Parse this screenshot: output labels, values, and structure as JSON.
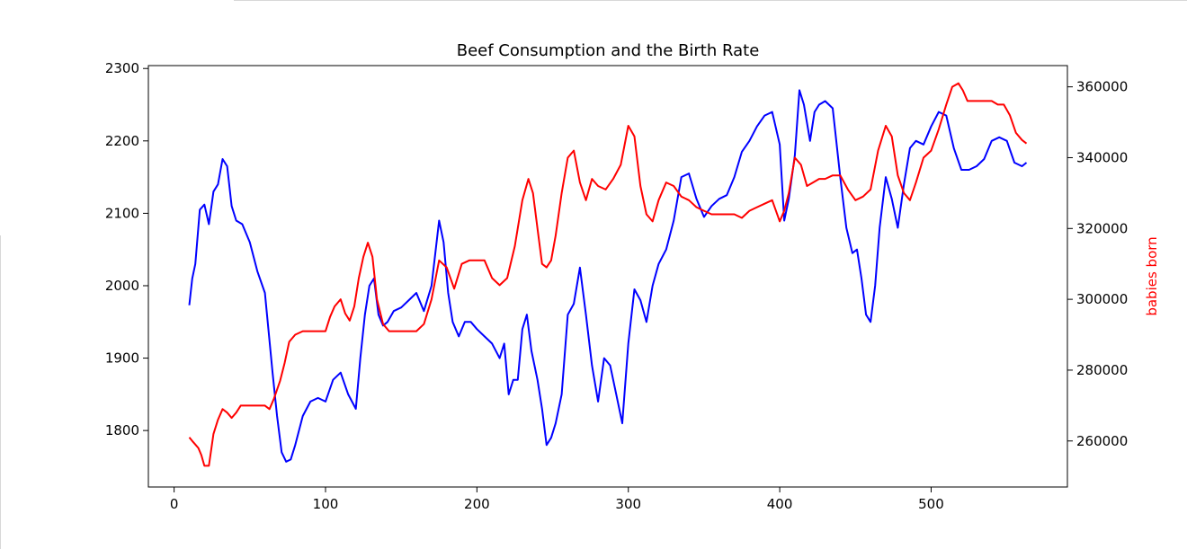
{
  "chart_data": {
    "type": "line",
    "title": "Beef Consumption and the Birth Rate",
    "xlabel": "",
    "xlim": [
      -17,
      590
    ],
    "x_ticks": [
      0,
      100,
      200,
      300,
      400,
      500
    ],
    "y_left": {
      "label": "",
      "lim": [
        1722,
        2304
      ],
      "ticks": [
        1800,
        1900,
        2000,
        2100,
        2200,
        2300
      ],
      "color": "#000000"
    },
    "y_right": {
      "label": "babies born",
      "label_color": "#ff0000",
      "lim": [
        247000,
        366000
      ],
      "ticks": [
        260000,
        280000,
        300000,
        320000,
        340000,
        360000
      ]
    },
    "grid": false,
    "series": [
      {
        "axis": "left",
        "color": "#0000ff",
        "x": [
          10,
          12,
          14,
          17,
          20,
          23,
          26,
          29,
          32,
          35,
          38,
          41,
          45,
          50,
          55,
          60,
          65,
          68,
          71,
          74,
          77,
          80,
          85,
          90,
          95,
          100,
          105,
          110,
          115,
          120,
          123,
          126,
          129,
          132,
          135,
          138,
          141,
          145,
          150,
          155,
          160,
          165,
          170,
          175,
          178,
          181,
          184,
          188,
          192,
          196,
          200,
          205,
          210,
          215,
          218,
          221,
          224,
          227,
          230,
          233,
          236,
          240,
          243,
          246,
          249,
          252,
          256,
          260,
          264,
          268,
          272,
          276,
          280,
          284,
          288,
          292,
          296,
          300,
          304,
          308,
          312,
          316,
          320,
          325,
          330,
          335,
          340,
          345,
          350,
          355,
          360,
          365,
          370,
          375,
          380,
          385,
          390,
          395,
          400,
          403,
          406,
          410,
          413,
          416,
          420,
          423,
          426,
          430,
          435,
          440,
          444,
          448,
          451,
          454,
          457,
          460,
          463,
          466,
          470,
          474,
          478,
          482,
          486,
          490,
          495,
          500,
          505,
          510,
          515,
          520,
          525,
          530,
          535,
          540,
          545,
          550,
          555,
          560,
          563
        ],
        "values": [
          1973,
          2010,
          2030,
          2105,
          2112,
          2085,
          2130,
          2140,
          2175,
          2165,
          2110,
          2090,
          2085,
          2060,
          2020,
          1990,
          1880,
          1820,
          1770,
          1757,
          1760,
          1780,
          1820,
          1840,
          1845,
          1840,
          1870,
          1880,
          1850,
          1830,
          1900,
          1960,
          2000,
          2010,
          1960,
          1945,
          1950,
          1965,
          1970,
          1980,
          1990,
          1965,
          2000,
          2090,
          2060,
          1990,
          1950,
          1930,
          1950,
          1950,
          1940,
          1930,
          1920,
          1900,
          1920,
          1850,
          1870,
          1870,
          1940,
          1960,
          1910,
          1870,
          1830,
          1780,
          1790,
          1810,
          1850,
          1960,
          1975,
          2025,
          1960,
          1890,
          1840,
          1900,
          1890,
          1850,
          1810,
          1920,
          1995,
          1980,
          1950,
          2000,
          2030,
          2050,
          2090,
          2150,
          2155,
          2120,
          2095,
          2110,
          2120,
          2125,
          2150,
          2185,
          2200,
          2220,
          2235,
          2240,
          2195,
          2090,
          2120,
          2180,
          2270,
          2250,
          2200,
          2240,
          2250,
          2255,
          2245,
          2150,
          2080,
          2045,
          2050,
          2010,
          1960,
          1950,
          2000,
          2080,
          2150,
          2120,
          2080,
          2140,
          2190,
          2200,
          2195,
          2220,
          2240,
          2235,
          2190,
          2160,
          2160,
          2165,
          2175,
          2200,
          2205,
          2200,
          2170,
          2165,
          2170
        ]
      },
      {
        "axis": "right",
        "color": "#ff0000",
        "x": [
          10,
          12,
          14,
          16,
          18,
          20,
          23,
          26,
          29,
          32,
          35,
          38,
          41,
          44,
          50,
          55,
          60,
          63,
          66,
          70,
          73,
          76,
          80,
          85,
          90,
          95,
          100,
          103,
          106,
          110,
          113,
          116,
          119,
          122,
          125,
          128,
          131,
          134,
          138,
          142,
          146,
          150,
          155,
          160,
          165,
          170,
          175,
          180,
          185,
          190,
          195,
          200,
          205,
          210,
          215,
          220,
          225,
          230,
          234,
          237,
          240,
          243,
          246,
          249,
          252,
          256,
          260,
          264,
          268,
          272,
          276,
          280,
          285,
          290,
          295,
          300,
          304,
          308,
          312,
          316,
          320,
          325,
          330,
          335,
          340,
          345,
          350,
          355,
          360,
          365,
          370,
          375,
          380,
          385,
          390,
          395,
          400,
          403,
          406,
          410,
          414,
          418,
          422,
          426,
          430,
          435,
          440,
          445,
          450,
          455,
          460,
          465,
          470,
          474,
          478,
          482,
          486,
          490,
          495,
          500,
          505,
          510,
          514,
          518,
          521,
          524,
          528,
          532,
          536,
          540,
          544,
          548,
          552,
          556,
          560,
          563
        ],
        "values": [
          261000,
          260000,
          259000,
          258000,
          256000,
          253000,
          253000,
          262000,
          266000,
          269000,
          268000,
          266500,
          268000,
          270000,
          270000,
          270000,
          270000,
          269000,
          272000,
          277000,
          282000,
          288000,
          290000,
          291000,
          291000,
          291000,
          291000,
          295000,
          298000,
          300000,
          296000,
          294000,
          298000,
          306000,
          312000,
          316000,
          312000,
          300000,
          293000,
          291000,
          291000,
          291000,
          291000,
          291000,
          293000,
          300000,
          311000,
          309000,
          303000,
          310000,
          311000,
          311000,
          311000,
          306000,
          304000,
          306000,
          315000,
          328000,
          334000,
          330000,
          320000,
          310000,
          309000,
          311000,
          318000,
          330000,
          340000,
          342000,
          333000,
          328000,
          334000,
          332000,
          331000,
          334000,
          338000,
          349000,
          346000,
          332000,
          324000,
          322000,
          328000,
          333000,
          332000,
          329000,
          328000,
          326000,
          325000,
          324000,
          324000,
          324000,
          324000,
          323000,
          325000,
          326000,
          327000,
          328000,
          322000,
          325000,
          330000,
          340000,
          338000,
          332000,
          333000,
          334000,
          334000,
          335000,
          335000,
          331000,
          328000,
          329000,
          331000,
          342000,
          349000,
          346000,
          335000,
          330000,
          328000,
          333000,
          340000,
          342000,
          348000,
          355000,
          360000,
          361000,
          359000,
          356000,
          356000,
          356000,
          356000,
          356000,
          355000,
          355000,
          352000,
          347000,
          345000,
          344000
        ]
      }
    ]
  }
}
